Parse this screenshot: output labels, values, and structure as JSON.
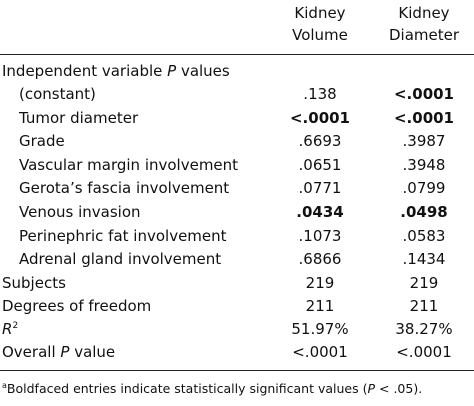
{
  "header": {
    "col1": [
      "Kidney",
      "Volume"
    ],
    "col2": [
      "Kidney",
      "Diameter"
    ]
  },
  "section_title_prefix": "Independent variable ",
  "section_title_italic": "P",
  "section_title_suffix": " values",
  "rows": [
    {
      "label": "(constant)",
      "v1": ".138",
      "v1_bold": false,
      "v2": "<.0001",
      "v2_bold": true
    },
    {
      "label": "Tumor diameter",
      "v1": "<.0001",
      "v1_bold": true,
      "v2": "<.0001",
      "v2_bold": true
    },
    {
      "label": "Grade",
      "v1": ".6693",
      "v1_bold": false,
      "v2": ".3987",
      "v2_bold": false
    },
    {
      "label": "Vascular margin involvement",
      "v1": ".0651",
      "v1_bold": false,
      "v2": ".3948",
      "v2_bold": false
    },
    {
      "label": "Gerota’s fascia involvement",
      "v1": ".0771",
      "v1_bold": false,
      "v2": ".0799",
      "v2_bold": false
    },
    {
      "label": "Venous invasion",
      "v1": ".0434",
      "v1_bold": true,
      "v2": ".0498",
      "v2_bold": true
    },
    {
      "label": "Perinephric fat involvement",
      "v1": ".1073",
      "v1_bold": false,
      "v2": ".0583",
      "v2_bold": false
    },
    {
      "label": "Adrenal gland involvement",
      "v1": ".6866",
      "v1_bold": false,
      "v2": ".1434",
      "v2_bold": false
    }
  ],
  "subjects": {
    "label": "Subjects",
    "v1": "219",
    "v2": "219"
  },
  "dof": {
    "label": "Degrees of freedom",
    "v1": "211",
    "v2": "211"
  },
  "r2": {
    "label_base": "R",
    "label_sup": "2",
    "v1": "51.97%",
    "v2": "38.27%"
  },
  "overall": {
    "label_prefix": "Overall ",
    "label_italic": "P",
    "label_suffix": " value",
    "v1": "<.0001",
    "v2": "<.0001"
  },
  "footnote": {
    "sup": "a",
    "text_before": "Boldfaced entries indicate statistically significant values (",
    "italic": "P",
    "text_after": " < .05)."
  }
}
